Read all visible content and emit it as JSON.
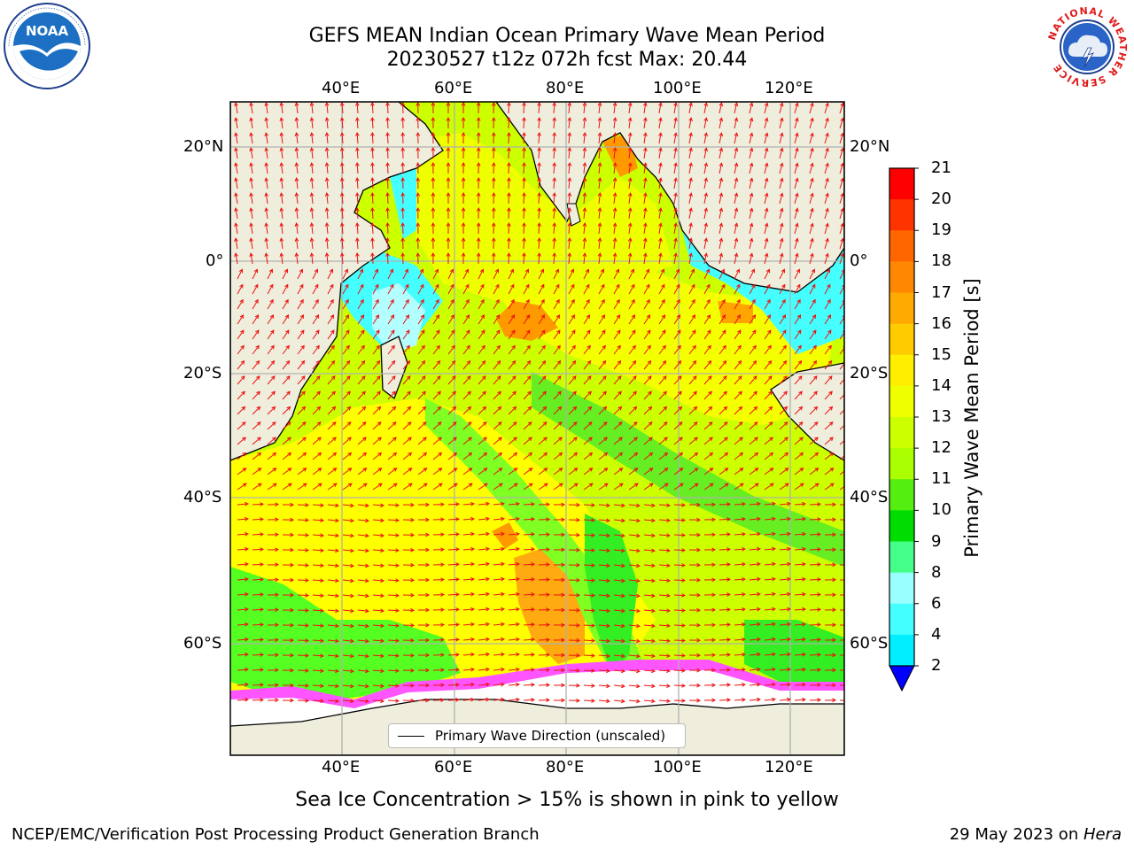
{
  "header": {
    "title_line1": "GEFS MEAN Indian Ocean Primary Wave Mean Period",
    "title_line2": "20230527 t12z 072h fcst   Max: 20.44"
  },
  "map": {
    "lon_labels": [
      "40°E",
      "60°E",
      "80°E",
      "100°E",
      "120°E"
    ],
    "lat_labels": [
      "20°N",
      "0°",
      "20°S",
      "40°S",
      "60°S"
    ],
    "lon_range": [
      20,
      130
    ],
    "lat_range": [
      -72,
      26
    ],
    "ocean_colors": {
      "shallow": "#45ffff",
      "light": "#b2ffff",
      "green": "#55ff55",
      "lime": "#b3ff00",
      "yellow": "#ffff00",
      "amber": "#ffc800",
      "orange": "#ff9900",
      "ice_pink": "#ff55ff",
      "land": "#efeedd"
    }
  },
  "legend": {
    "label": "Primary Wave Direction (unscaled)"
  },
  "colorbar": {
    "title": "Primary Wave Mean Period [s]",
    "ticks": [
      "21",
      "20",
      "19",
      "18",
      "17",
      "16",
      "15",
      "14",
      "13",
      "12",
      "11",
      "10",
      "9",
      "8",
      "6",
      "4",
      "2"
    ],
    "colors": [
      "#ff0000",
      "#ff3300",
      "#ff6600",
      "#ff8800",
      "#ffaa00",
      "#ffcc00",
      "#ffee00",
      "#eeff00",
      "#ccff00",
      "#aaff00",
      "#55ee11",
      "#00dd00",
      "#44ff88",
      "#99ffff",
      "#44ffff",
      "#00eeff",
      "#0088ff"
    ],
    "extend_color": "#0000ff"
  },
  "caption": "Sea Ice Concentration > 15% is shown in pink to yellow",
  "footer": {
    "left": "NCEP/EMC/Verification Post Processing Product Generation Branch",
    "date": "29 May 2023 on ",
    "machine": "Hera"
  },
  "logos": {
    "noaa_text": "NOAA",
    "nws_text": "NATIONAL WEATHER SERVICE"
  }
}
